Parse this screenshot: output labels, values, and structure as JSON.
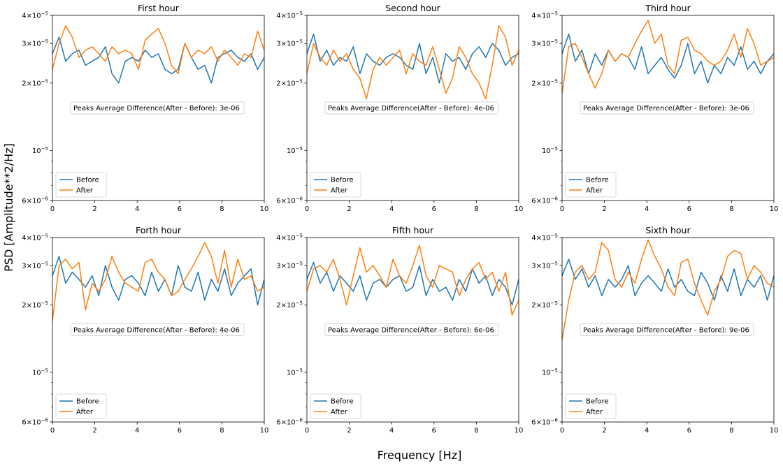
{
  "figure": {
    "xlabel": "Frequency [Hz]",
    "ylabel": "PSD [Amplitude**2/Hz]"
  },
  "colors": {
    "before": "#1f77b4",
    "after": "#ff7f0e"
  },
  "chart_data": [
    {
      "type": "line",
      "title": "First hour",
      "xlim": [
        0,
        10
      ],
      "ylim": [
        6e-06,
        4e-05
      ],
      "yscale": "log",
      "annotation": "Peaks Average Difference(After - Before): 3e-06",
      "legend_position": "lower-left",
      "series": [
        {
          "name": "Before",
          "key": "before",
          "values": [
            2.7e-05,
            3.2e-05,
            2.5e-05,
            2.7e-05,
            2.8e-05,
            2.4e-05,
            2.5e-05,
            2.6e-05,
            2.9e-05,
            2.2e-05,
            2e-05,
            2.5e-05,
            2.6e-05,
            2.5e-05,
            2.8e-05,
            2.6e-05,
            2.7e-05,
            2.3e-05,
            2.2e-05,
            2.3e-05,
            3e-05,
            2.6e-05,
            2.3e-05,
            2.4e-05,
            2e-05,
            2.6e-05,
            2.7e-05,
            2.8e-05,
            2.6e-05,
            2.5e-05,
            2.7e-05,
            2.3e-05,
            2.6e-05
          ]
        },
        {
          "name": "After",
          "key": "after",
          "values": [
            2.3e-05,
            3e-05,
            3.6e-05,
            3.2e-05,
            2.6e-05,
            2.8e-05,
            2.9e-05,
            2.7e-05,
            2.5e-05,
            2.9e-05,
            2.7e-05,
            2.8e-05,
            2.7e-05,
            2.3e-05,
            3.1e-05,
            3.3e-05,
            3.5e-05,
            3e-05,
            2.4e-05,
            2.2e-05,
            3e-05,
            2.6e-05,
            2.8e-05,
            2.7e-05,
            2.9e-05,
            2.5e-05,
            2.8e-05,
            2.6e-05,
            2.4e-05,
            2.7e-05,
            2.6e-05,
            3.4e-05,
            2.8e-05
          ]
        }
      ]
    },
    {
      "type": "line",
      "title": "Second hour",
      "xlim": [
        0,
        10
      ],
      "ylim": [
        6e-06,
        4e-05
      ],
      "yscale": "log",
      "annotation": "Peaks Average Difference(After - Before): 4e-06",
      "legend_position": "lower-left",
      "series": [
        {
          "name": "Before",
          "key": "before",
          "values": [
            2.7e-05,
            3.3e-05,
            2.5e-05,
            2.8e-05,
            2.4e-05,
            2.6e-05,
            2.5e-05,
            2.9e-05,
            2.2e-05,
            2.7e-05,
            2.5e-05,
            2.4e-05,
            2.6e-05,
            2.7e-05,
            2.6e-05,
            2.4e-05,
            2.3e-05,
            3e-05,
            2.2e-05,
            2.6e-05,
            2e-05,
            2.7e-05,
            2.5e-05,
            2.6e-05,
            2.3e-05,
            2.7e-05,
            2.9e-05,
            2.6e-05,
            3e-05,
            2.8e-05,
            2.4e-05,
            2.6e-05,
            2.7e-05
          ]
        },
        {
          "name": "After",
          "key": "after",
          "values": [
            2.2e-05,
            3e-05,
            2.6e-05,
            2.4e-05,
            2.8e-05,
            2.5e-05,
            2.7e-05,
            2.3e-05,
            2.1e-05,
            1.7e-05,
            2.3e-05,
            2.6e-05,
            2.4e-05,
            2.6e-05,
            2.8e-05,
            2.2e-05,
            2.7e-05,
            2.5e-05,
            2.4e-05,
            2.9e-05,
            2.3e-05,
            1.8e-05,
            2.1e-05,
            2.9e-05,
            2.6e-05,
            2.2e-05,
            2e-05,
            1.7e-05,
            2.4e-05,
            3.6e-05,
            3.2e-05,
            2.4e-05,
            2.8e-05
          ]
        }
      ]
    },
    {
      "type": "line",
      "title": "Third hour",
      "xlim": [
        0,
        10
      ],
      "ylim": [
        6e-06,
        4e-05
      ],
      "yscale": "log",
      "annotation": "Peaks Average Difference(After - Before): 3e-06",
      "legend_position": "lower-left",
      "series": [
        {
          "name": "Before",
          "key": "before",
          "values": [
            2.7e-05,
            3.3e-05,
            2.5e-05,
            2.8e-05,
            2.2e-05,
            2.7e-05,
            2.4e-05,
            2.8e-05,
            2.5e-05,
            2.7e-05,
            2.6e-05,
            2.3e-05,
            2.9e-05,
            2.2e-05,
            2.4e-05,
            2.6e-05,
            2.3e-05,
            2.1e-05,
            2.4e-05,
            3e-05,
            2.2e-05,
            2.5e-05,
            2e-05,
            2.4e-05,
            2.2e-05,
            2.6e-05,
            2.4e-05,
            2.9e-05,
            2.3e-05,
            2.5e-05,
            2.2e-05,
            2.5e-05,
            2.7e-05
          ]
        },
        {
          "name": "After",
          "key": "after",
          "values": [
            1.8e-05,
            2.9e-05,
            3e-05,
            2.6e-05,
            2.2e-05,
            1.9e-05,
            2.2e-05,
            2.8e-05,
            2.5e-05,
            2.7e-05,
            2.6e-05,
            3e-05,
            3.4e-05,
            3.8e-05,
            3e-05,
            3.3e-05,
            2.4e-05,
            2.2e-05,
            3.1e-05,
            3.2e-05,
            2.8e-05,
            2.7e-05,
            2.5e-05,
            2.4e-05,
            2.5e-05,
            2.8e-05,
            3.3e-05,
            2.6e-05,
            3.5e-05,
            3e-05,
            2.4e-05,
            2.5e-05,
            2.6e-05
          ]
        }
      ]
    },
    {
      "type": "line",
      "title": "Forth hour",
      "xlim": [
        0,
        10
      ],
      "ylim": [
        6e-06,
        4e-05
      ],
      "yscale": "log",
      "annotation": "Peaks Average Difference(After - Before): 4e-06",
      "legend_position": "lower-left",
      "series": [
        {
          "name": "Before",
          "key": "before",
          "values": [
            2.7e-05,
            3.3e-05,
            2.5e-05,
            2.8e-05,
            2.6e-05,
            2.4e-05,
            2.7e-05,
            2.2e-05,
            3e-05,
            2.4e-05,
            2.1e-05,
            2.6e-05,
            2.7e-05,
            2.5e-05,
            2.2e-05,
            2.8e-05,
            2.3e-05,
            2.6e-05,
            2.2e-05,
            3e-05,
            2.4e-05,
            2.3e-05,
            2.8e-05,
            2.1e-05,
            2.6e-05,
            2.3e-05,
            2.9e-05,
            2.2e-05,
            2.5e-05,
            2.7e-05,
            2.9e-05,
            2e-05,
            2.6e-05
          ]
        },
        {
          "name": "After",
          "key": "after",
          "values": [
            1.7e-05,
            3e-05,
            3.2e-05,
            2.9e-05,
            3.1e-05,
            1.9e-05,
            2.5e-05,
            2.3e-05,
            2.6e-05,
            3.3e-05,
            2.8e-05,
            2.5e-05,
            2.4e-05,
            2.3e-05,
            3.1e-05,
            3.2e-05,
            2.8e-05,
            2.6e-05,
            2.2e-05,
            2.3e-05,
            2.6e-05,
            2.9e-05,
            3.3e-05,
            3.8e-05,
            3.3e-05,
            2.5e-05,
            3.5e-05,
            2.4e-05,
            3.2e-05,
            2.6e-05,
            2.7e-05,
            2.3e-05,
            2.4e-05
          ]
        }
      ]
    },
    {
      "type": "line",
      "title": "Fifth hour",
      "xlim": [
        0,
        10
      ],
      "ylim": [
        6e-06,
        4e-05
      ],
      "yscale": "log",
      "annotation": "Peaks Average Difference(After - Before): 6e-06",
      "legend_position": "lower-left",
      "series": [
        {
          "name": "Before",
          "key": "before",
          "values": [
            2.6e-05,
            3.1e-05,
            2.5e-05,
            2.8e-05,
            2.3e-05,
            2.7e-05,
            2.5e-05,
            2.3e-05,
            2.7e-05,
            2.1e-05,
            2.5e-05,
            2.6e-05,
            2.4e-05,
            2.6e-05,
            2.7e-05,
            2.3e-05,
            2.4e-05,
            3e-05,
            2.2e-05,
            2.6e-05,
            2.3e-05,
            2.4e-05,
            2.1e-05,
            2.6e-05,
            2.3e-05,
            2.9e-05,
            2.5e-05,
            2.7e-05,
            2.2e-05,
            2.6e-05,
            2.4e-05,
            2e-05,
            2.6e-05
          ]
        },
        {
          "name": "After",
          "key": "after",
          "values": [
            2.3e-05,
            2.9e-05,
            3e-05,
            2.8e-05,
            3.2e-05,
            2.6e-05,
            2e-05,
            2.7e-05,
            3.6e-05,
            2.8e-05,
            3e-05,
            2.7e-05,
            2.4e-05,
            3.2e-05,
            2.7e-05,
            2.5e-05,
            3e-05,
            3.7e-05,
            2.7e-05,
            2.4e-05,
            3e-05,
            2.9e-05,
            2.8e-05,
            2.2e-05,
            2.6e-05,
            2.9e-05,
            3.1e-05,
            2.6e-05,
            2.8e-05,
            2.3e-05,
            2.8e-05,
            1.8e-05,
            2.1e-05
          ]
        }
      ]
    },
    {
      "type": "line",
      "title": "Sixth hour",
      "xlim": [
        0,
        10
      ],
      "ylim": [
        6e-06,
        4e-05
      ],
      "yscale": "log",
      "annotation": "Peaks Average Difference(After - Before): 9e-06",
      "legend_position": "lower-left",
      "series": [
        {
          "name": "Before",
          "key": "before",
          "values": [
            2.7e-05,
            3.2e-05,
            2.6e-05,
            2.9e-05,
            2.4e-05,
            2.7e-05,
            2.2e-05,
            2.6e-05,
            2.4e-05,
            2.6e-05,
            3e-05,
            2.2e-05,
            2.5e-05,
            2.7e-05,
            2.5e-05,
            2.3e-05,
            2.9e-05,
            2.4e-05,
            2.6e-05,
            2.3e-05,
            2.2e-05,
            2.8e-05,
            2.5e-05,
            2.1e-05,
            2.7e-05,
            2.3e-05,
            2.9e-05,
            2.2e-05,
            2.6e-05,
            2.4e-05,
            2.7e-05,
            2.1e-05,
            2.7e-05
          ]
        },
        {
          "name": "After",
          "key": "after",
          "values": [
            1.4e-05,
            2.1e-05,
            2.8e-05,
            3e-05,
            2.6e-05,
            2.8e-05,
            3.8e-05,
            3.5e-05,
            2.6e-05,
            2.4e-05,
            2.8e-05,
            2.5e-05,
            3.2e-05,
            3.9e-05,
            3.3e-05,
            2.9e-05,
            2.4e-05,
            2.2e-05,
            3.1e-05,
            3.2e-05,
            2.5e-05,
            2.1e-05,
            1.8e-05,
            2.3e-05,
            2.6e-05,
            3.3e-05,
            3.5e-05,
            3.4e-05,
            2.6e-05,
            3e-05,
            2.8e-05,
            2.5e-05,
            2.4e-05
          ]
        }
      ]
    }
  ]
}
